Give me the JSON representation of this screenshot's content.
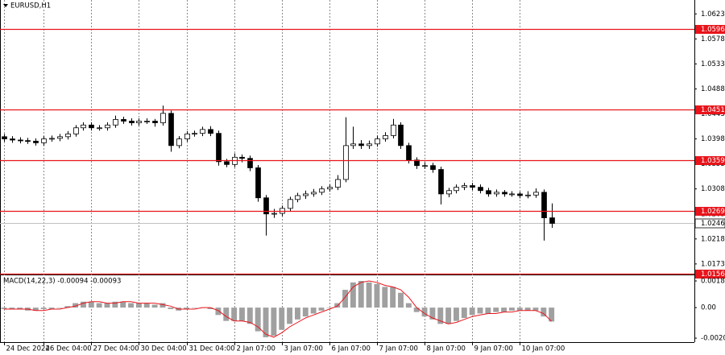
{
  "chart_data": [
    {
      "type": "candlestick",
      "title": "EURUSD,H1",
      "xticks": [
        {
          "value": 0,
          "label": "24 Dec 2024"
        },
        {
          "value": 5,
          "label": "26 Dec 04:00"
        },
        {
          "value": 11,
          "label": "27 Dec 04:00"
        },
        {
          "value": 17,
          "label": "30 Dec 04:00"
        },
        {
          "value": 23,
          "label": "31 Dec 04:00"
        },
        {
          "value": 29,
          "label": "2 Jan 07:00"
        },
        {
          "value": 35,
          "label": "3 Jan 07:00"
        },
        {
          "value": 41,
          "label": "6 Jan 07:00"
        },
        {
          "value": 47,
          "label": "7 Jan 07:00"
        },
        {
          "value": 53,
          "label": "8 Jan 07:00"
        },
        {
          "value": 59,
          "label": "9 Jan 07:00"
        },
        {
          "value": 65,
          "label": "10 Jan 07:00"
        }
      ],
      "xlim": [
        -0.5,
        87.0
      ],
      "ylim": [
        1.0154,
        1.0648
      ],
      "yticks": [
        1.0623,
        1.0578,
        1.0533,
        1.0488,
        1.0443,
        1.0398,
        1.0353,
        1.0308,
        1.0263,
        1.0218,
        1.0173
      ],
      "open": [
        1.0402,
        1.0398,
        1.0396,
        1.0395,
        1.0394,
        1.0391,
        1.0398,
        1.0399,
        1.0402,
        1.0407,
        1.0418,
        1.0423,
        1.0418,
        1.0418,
        1.0423,
        1.0433,
        1.043,
        1.0427,
        1.043,
        1.043,
        1.0427,
        1.0444,
        1.0386,
        1.0398,
        1.0407,
        1.0408,
        1.0415,
        1.0408,
        1.0357,
        1.0352,
        1.0365,
        1.0363,
        1.0346,
        1.0292,
        1.0263,
        1.0264,
        1.0273,
        1.0289,
        1.0296,
        1.0299,
        1.0302,
        1.0308,
        1.0311,
        1.0325,
        1.0386,
        1.0389,
        1.0386,
        1.0389,
        1.0398,
        1.0404,
        1.0423,
        1.0386,
        1.036,
        1.035,
        1.035,
        1.0343,
        1.0299,
        1.0305,
        1.0311,
        1.0314,
        1.0311,
        1.0305,
        1.0299,
        1.0302,
        1.0299,
        1.0299,
        1.0296,
        1.0297,
        1.0302,
        1.0256
      ],
      "high": [
        1.0407,
        1.0403,
        1.0401,
        1.04,
        1.0399,
        1.0403,
        1.0404,
        1.0407,
        1.0412,
        1.0423,
        1.0428,
        1.0428,
        1.0423,
        1.0428,
        1.044,
        1.0438,
        1.0435,
        1.0435,
        1.0435,
        1.0434,
        1.0458,
        1.0449,
        1.0403,
        1.0412,
        1.0413,
        1.042,
        1.0421,
        1.0413,
        1.0362,
        1.0372,
        1.037,
        1.0368,
        1.0351,
        1.0297,
        1.0272,
        1.0278,
        1.0294,
        1.0301,
        1.0305,
        1.0308,
        1.0313,
        1.0316,
        1.0333,
        1.0437,
        1.042,
        1.0396,
        1.0395,
        1.0404,
        1.041,
        1.0434,
        1.0428,
        1.0391,
        1.0365,
        1.0356,
        1.0355,
        1.0348,
        1.031,
        1.0316,
        1.0319,
        1.0319,
        1.0316,
        1.031,
        1.0307,
        1.0306,
        1.0304,
        1.0303,
        1.0304,
        1.0309,
        1.0307,
        1.0282
      ],
      "low": [
        1.0393,
        1.0391,
        1.039,
        1.0389,
        1.0386,
        1.0386,
        1.0393,
        1.0394,
        1.0397,
        1.0402,
        1.0413,
        1.0413,
        1.0413,
        1.0413,
        1.0418,
        1.0425,
        1.0422,
        1.0422,
        1.0425,
        1.042,
        1.0422,
        1.0375,
        1.0381,
        1.0393,
        1.0402,
        1.0403,
        1.0403,
        1.035,
        1.0347,
        1.0347,
        1.0356,
        1.034,
        1.0285,
        1.0224,
        1.0256,
        1.0259,
        1.0268,
        1.0284,
        1.029,
        1.0294,
        1.0297,
        1.0303,
        1.0306,
        1.032,
        1.038,
        1.038,
        1.038,
        1.0384,
        1.0393,
        1.0399,
        1.038,
        1.0354,
        1.0344,
        1.0344,
        1.0337,
        1.028,
        1.0293,
        1.03,
        1.0306,
        1.0306,
        1.03,
        1.0294,
        1.0294,
        1.0294,
        1.0294,
        1.0291,
        1.0291,
        1.0292,
        1.0215,
        1.0238
      ],
      "close": [
        1.0398,
        1.0396,
        1.0395,
        1.0394,
        1.0391,
        1.0398,
        1.0399,
        1.0402,
        1.0407,
        1.0418,
        1.0423,
        1.0418,
        1.0418,
        1.0423,
        1.0433,
        1.043,
        1.0427,
        1.043,
        1.043,
        1.0427,
        1.0444,
        1.0386,
        1.0398,
        1.0407,
        1.0408,
        1.0415,
        1.0408,
        1.0357,
        1.0352,
        1.0365,
        1.0363,
        1.0346,
        1.0292,
        1.0263,
        1.0264,
        1.0273,
        1.0289,
        1.0296,
        1.0299,
        1.0302,
        1.0308,
        1.0311,
        1.0325,
        1.0386,
        1.0389,
        1.0386,
        1.0389,
        1.0398,
        1.0404,
        1.0423,
        1.0386,
        1.036,
        1.035,
        1.035,
        1.0343,
        1.0299,
        1.0305,
        1.0311,
        1.0314,
        1.0311,
        1.0305,
        1.0299,
        1.0302,
        1.0299,
        1.0299,
        1.0296,
        1.0297,
        1.0302,
        1.0256,
        1.0246
      ],
      "color": "#000000",
      "levels": [
        1.0596,
        1.0451,
        1.0359,
        1.0269,
        1.0156
      ],
      "level_color": "#e8141b",
      "last_price": 1.0246,
      "grid": true
    },
    {
      "type": "macd",
      "title": "MACD(14,22,3) -0.00094 -0.00093",
      "xlim": [
        -0.5,
        87.0
      ],
      "ylim": [
        -0.00233,
        0.00218
      ],
      "yticks": [
        0.0018,
        {
          "value": 0,
          "label": "0.00"
        },
        -0.00206
      ],
      "histogram": [
        -0.0001,
        -0.0001,
        -0.0001,
        -0.0002,
        -0.0002,
        -0.0001,
        -0.0001,
        0.0,
        0.0001,
        0.0003,
        0.0004,
        0.0004,
        0.0003,
        0.0003,
        0.0004,
        0.0004,
        0.0003,
        0.0003,
        0.0003,
        0.0002,
        0.0003,
        -0.0001,
        -0.0002,
        -0.0001,
        0.0,
        0.0,
        -0.0001,
        -0.0005,
        -0.0009,
        -0.0009,
        -0.0009,
        -0.0011,
        -0.0016,
        -0.002,
        -0.0019,
        -0.0015,
        -0.0011,
        -0.0008,
        -0.0006,
        -0.0004,
        -0.0002,
        0.0,
        0.0003,
        0.0012,
        0.0017,
        0.0018,
        0.0017,
        0.0016,
        0.0014,
        0.0014,
        0.001,
        0.0003,
        -0.0003,
        -0.0006,
        -0.0008,
        -0.0011,
        -0.0011,
        -0.0009,
        -0.0007,
        -0.0005,
        -0.0004,
        -0.0004,
        -0.0003,
        -0.0003,
        -0.0002,
        -0.0002,
        -0.0002,
        -0.0002,
        -0.0006,
        -0.00094
      ],
      "histogram_color": "#a0a0a0",
      "signal": [
        -0.0001,
        -0.0001,
        -0.0001,
        -0.0001,
        -0.0002,
        -0.0002,
        -0.0001,
        -0.0001,
        0.0,
        0.0001,
        0.0003,
        0.0004,
        0.0004,
        0.0003,
        0.0003,
        0.0004,
        0.0004,
        0.0003,
        0.0003,
        0.0003,
        0.0002,
        0.0001,
        -0.0001,
        -0.0001,
        -0.0001,
        0.0,
        0.0,
        -0.0002,
        -0.0006,
        -0.0009,
        -0.0009,
        -0.001,
        -0.0013,
        -0.0018,
        -0.002,
        -0.0017,
        -0.0013,
        -0.001,
        -0.0007,
        -0.0005,
        -0.0003,
        -0.0001,
        0.0001,
        0.0007,
        0.0014,
        0.0017,
        0.0018,
        0.0017,
        0.0015,
        0.0014,
        0.0012,
        0.0007,
        0.0,
        -0.0004,
        -0.0007,
        -0.0009,
        -0.0011,
        -0.001,
        -0.0008,
        -0.0006,
        -0.0005,
        -0.0004,
        -0.0004,
        -0.0003,
        -0.0003,
        -0.0002,
        -0.0002,
        -0.0002,
        -0.0004,
        -0.00093
      ],
      "signal_color": "#e8141b"
    }
  ]
}
